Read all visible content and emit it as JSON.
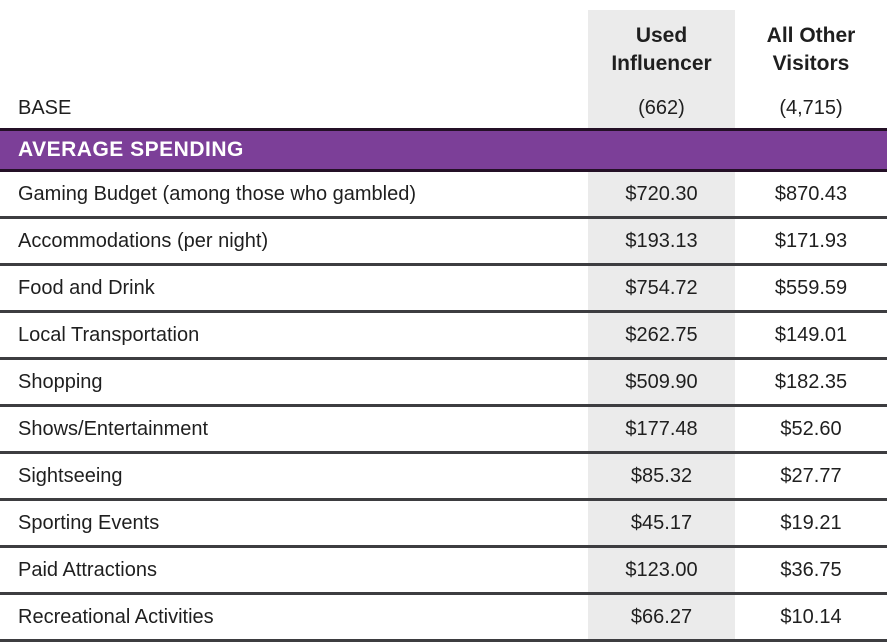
{
  "colors": {
    "banner_purple": "#7c3f98",
    "banner_border": "#241026",
    "row_divider": "#3d3d40",
    "highlight_bg": "#ebebeb",
    "text": "#1f1f1f"
  },
  "table": {
    "columns": [
      {
        "title": "Used\nInfluencer"
      },
      {
        "title": "All Other\nVisitors"
      }
    ],
    "base": {
      "label": "BASE",
      "used_influencer": "(662)",
      "all_other_visitors": "(4,715)"
    },
    "section_title": "AVERAGE SPENDING",
    "rows": [
      {
        "label": "Gaming Budget (among those who gambled)",
        "used_influencer": "$720.30",
        "all_other_visitors": "$870.43"
      },
      {
        "label": "Accommodations (per night)",
        "used_influencer": "$193.13",
        "all_other_visitors": "$171.93"
      },
      {
        "label": "Food and Drink",
        "used_influencer": "$754.72",
        "all_other_visitors": "$559.59"
      },
      {
        "label": "Local Transportation",
        "used_influencer": "$262.75",
        "all_other_visitors": "$149.01"
      },
      {
        "label": "Shopping",
        "used_influencer": "$509.90",
        "all_other_visitors": "$182.35"
      },
      {
        "label": "Shows/Entertainment",
        "used_influencer": "$177.48",
        "all_other_visitors": "$52.60"
      },
      {
        "label": "Sightseeing",
        "used_influencer": "$85.32",
        "all_other_visitors": "$27.77"
      },
      {
        "label": "Sporting Events",
        "used_influencer": "$45.17",
        "all_other_visitors": "$19.21"
      },
      {
        "label": "Paid Attractions",
        "used_influencer": "$123.00",
        "all_other_visitors": "$36.75"
      },
      {
        "label": "Recreational Activities",
        "used_influencer": "$66.27",
        "all_other_visitors": "$10.14"
      }
    ]
  },
  "chart_data": {
    "type": "table",
    "title": "AVERAGE SPENDING",
    "columns": [
      "Category",
      "Used Influencer (662)",
      "All Other Visitors (4,715)"
    ],
    "categories": [
      "Gaming Budget (among those who gambled)",
      "Accommodations (per night)",
      "Food and Drink",
      "Local Transportation",
      "Shopping",
      "Shows/Entertainment",
      "Sightseeing",
      "Sporting Events",
      "Paid Attractions",
      "Recreational Activities"
    ],
    "series": [
      {
        "name": "Used Influencer",
        "base": 662,
        "values": [
          720.3,
          193.13,
          754.72,
          262.75,
          509.9,
          177.48,
          85.32,
          45.17,
          123.0,
          66.27
        ]
      },
      {
        "name": "All Other Visitors",
        "base": 4715,
        "values": [
          870.43,
          171.93,
          559.59,
          149.01,
          182.35,
          52.6,
          27.77,
          19.21,
          36.75,
          10.14
        ]
      }
    ]
  }
}
